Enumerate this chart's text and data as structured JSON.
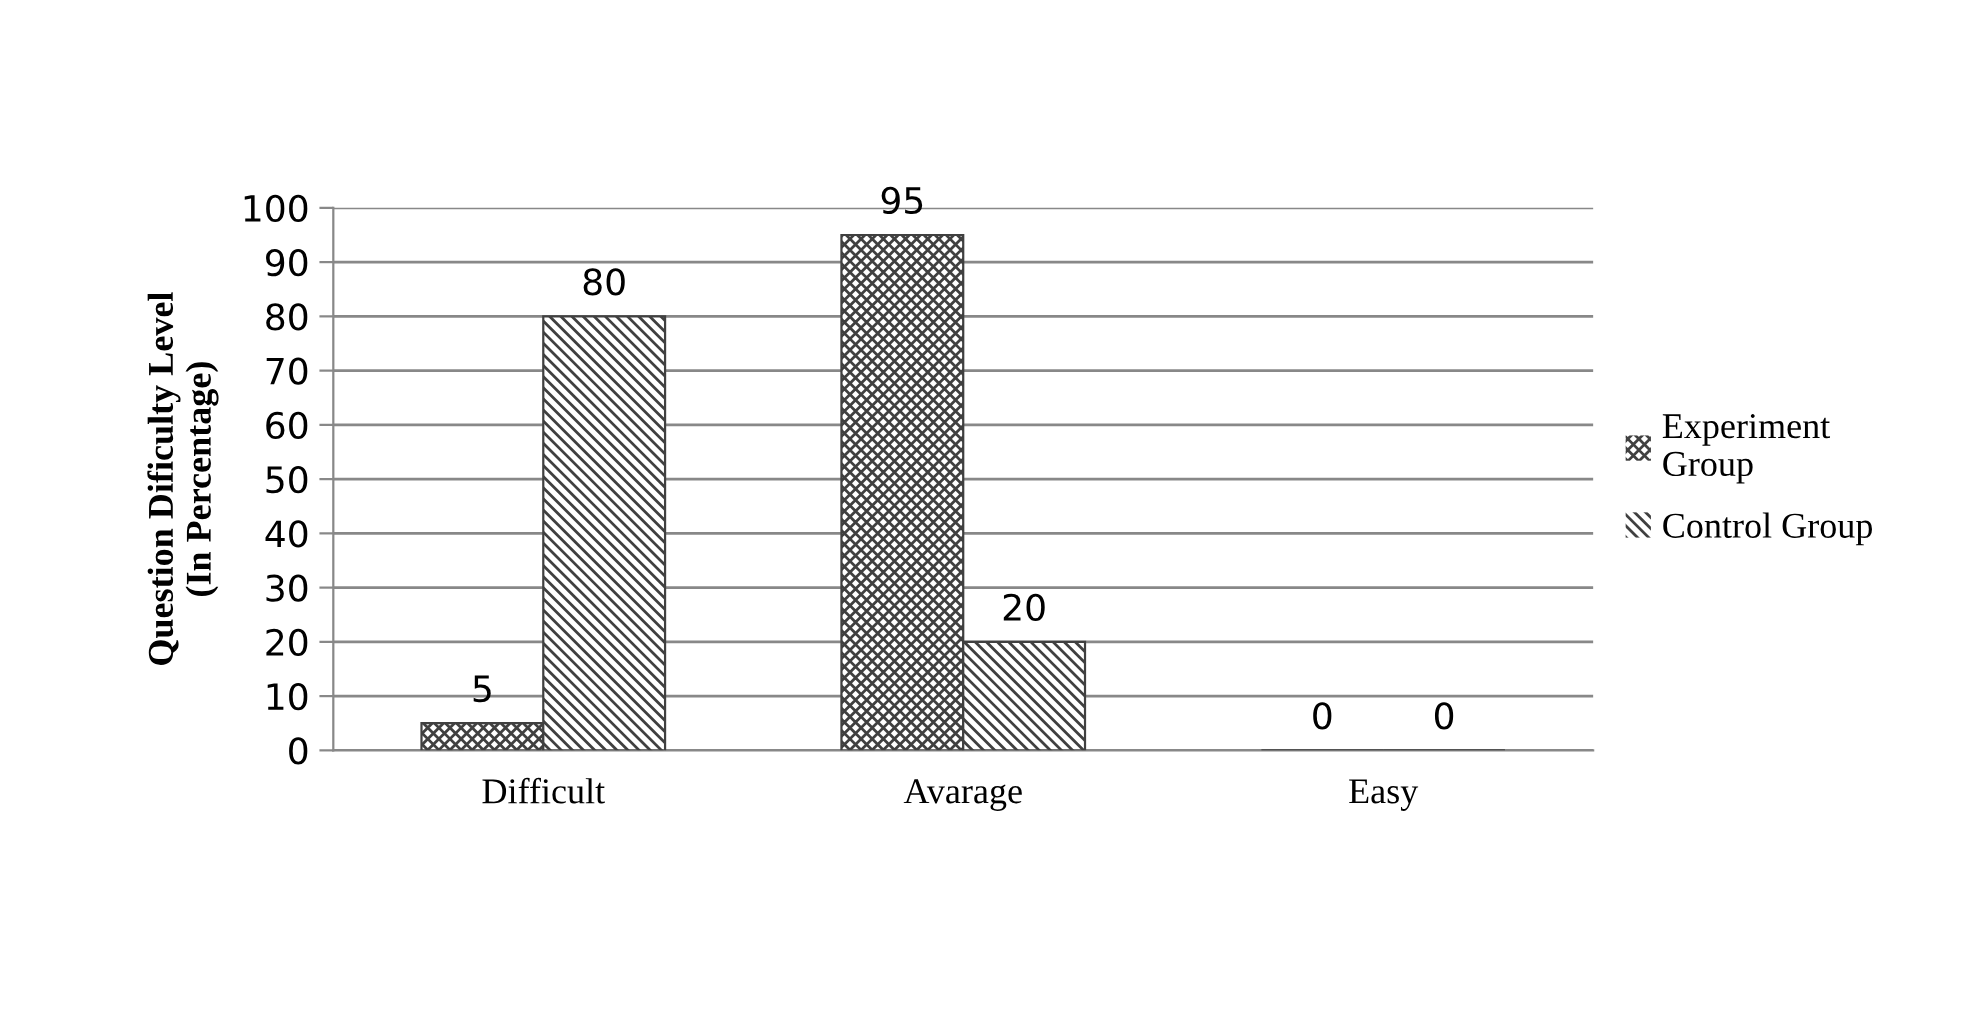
{
  "chart_data": {
    "type": "bar",
    "ylabel": "Question Dificulty Level\n(In Percentage)",
    "categories": [
      "Difficult",
      "Avarage",
      "Easy"
    ],
    "series": [
      {
        "name": "Experiment\nGroup",
        "color": "#404040",
        "values": [
          5,
          95,
          0
        ]
      },
      {
        "name": "Control Group",
        "color": "#404040",
        "values": [
          80,
          20,
          0
        ]
      }
    ],
    "ylim": [
      0,
      100
    ],
    "yticks": [
      0,
      10,
      20,
      30,
      40,
      50,
      60,
      70,
      80,
      90,
      100
    ],
    "grid": "y",
    "legend": "right",
    "data_labels": true
  }
}
